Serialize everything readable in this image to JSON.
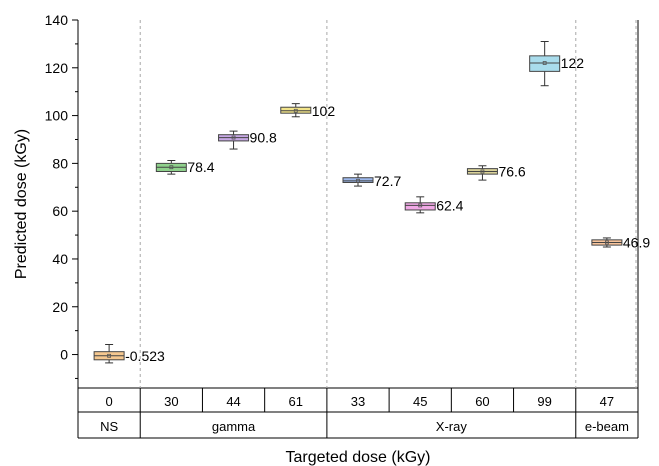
{
  "chart_data": {
    "type": "box",
    "ylabel": "Predicted dose (kGy)",
    "xlabel": "Targeted dose (kGy)",
    "ylim": [
      -14,
      140
    ],
    "yticks": [
      0,
      20,
      40,
      60,
      80,
      100,
      120,
      140
    ],
    "grid": false,
    "groups": [
      {
        "name": "NS",
        "categories": [
          "0"
        ]
      },
      {
        "name": "gamma",
        "categories": [
          "30",
          "44",
          "61"
        ]
      },
      {
        "name": "X-ray",
        "categories": [
          "33",
          "45",
          "60",
          "99"
        ]
      },
      {
        "name": "e-beam",
        "categories": [
          "47"
        ]
      }
    ],
    "boxes": [
      {
        "category": "0",
        "group": "NS",
        "median": -0.523,
        "q1": -2.2,
        "q3": 1.2,
        "whisker_low": -3.5,
        "whisker_high": 4.2,
        "mean": -0.523,
        "label": "-0.523",
        "color": "#F5C890"
      },
      {
        "category": "30",
        "group": "gamma",
        "median": 78.4,
        "q1": 76.6,
        "q3": 80.0,
        "whisker_low": 75.5,
        "whisker_high": 81.2,
        "mean": 78.4,
        "label": "78.4",
        "color": "#8FD18C"
      },
      {
        "category": "44",
        "group": "gamma",
        "median": 90.8,
        "q1": 89.4,
        "q3": 92.0,
        "whisker_low": 86.0,
        "whisker_high": 93.5,
        "mean": 90.8,
        "label": "90.8",
        "color": "#C7A8E4"
      },
      {
        "category": "61",
        "group": "gamma",
        "median": 102,
        "q1": 101.0,
        "q3": 103.5,
        "whisker_low": 99.5,
        "whisker_high": 105.0,
        "mean": 102,
        "label": "102",
        "color": "#F2E48A"
      },
      {
        "category": "33",
        "group": "X-ray",
        "median": 72.7,
        "q1": 72.0,
        "q3": 74.0,
        "whisker_low": 70.5,
        "whisker_high": 75.5,
        "mean": 72.7,
        "label": "72.7",
        "color": "#9DB8EC"
      },
      {
        "category": "45",
        "group": "X-ray",
        "median": 62.4,
        "q1": 60.5,
        "q3": 63.5,
        "whisker_low": 59.3,
        "whisker_high": 66.0,
        "mean": 62.4,
        "label": "62.4",
        "color": "#F1A9E6"
      },
      {
        "category": "60",
        "group": "X-ray",
        "median": 76.6,
        "q1": 75.5,
        "q3": 77.8,
        "whisker_low": 73.0,
        "whisker_high": 79.0,
        "mean": 76.6,
        "label": "76.6",
        "color": "#D9D29A"
      },
      {
        "category": "99",
        "group": "X-ray",
        "median": 122,
        "q1": 118.5,
        "q3": 125.0,
        "whisker_low": 112.5,
        "whisker_high": 131.0,
        "mean": 122,
        "label": "122",
        "color": "#A9DCEC"
      },
      {
        "category": "47",
        "group": "e-beam",
        "median": 46.9,
        "q1": 45.8,
        "q3": 48.0,
        "whisker_low": 45.0,
        "whisker_high": 48.8,
        "mean": 46.9,
        "label": "46.9",
        "color": "#F7C49C"
      }
    ]
  }
}
